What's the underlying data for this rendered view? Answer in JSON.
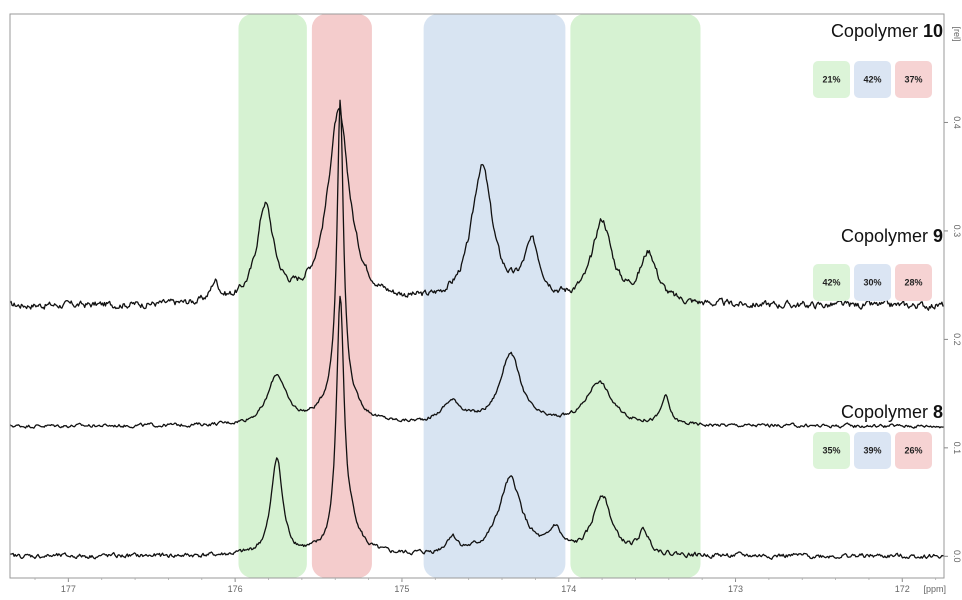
{
  "chart_data": {
    "type": "line",
    "title": "",
    "xlabel": "",
    "ylabel": "",
    "x_unit_label": "[ppm]",
    "y_unit_label": "[rel]",
    "xlim": [
      177.35,
      171.75
    ],
    "x_reversed": true,
    "x_ticks": [
      "177",
      "176",
      "175",
      "174",
      "173",
      "172"
    ],
    "y_ticks": [
      "0.0",
      "0.1",
      "0.2",
      "0.3",
      "0.4"
    ],
    "ylim": [
      -0.02,
      0.5
    ],
    "colors": {
      "line": "#111111",
      "green_band": "#d6f2d2",
      "red_band": "#f4cccc",
      "blue_band": "#d8e4f2",
      "green_badge": "#dcf4d8",
      "blue_badge": "#dbe5f3",
      "red_badge": "#f6d3d3"
    },
    "regions": [
      {
        "color": "green",
        "from": 175.98,
        "to": 175.57
      },
      {
        "color": "red",
        "from": 175.54,
        "to": 175.18
      },
      {
        "color": "blue",
        "from": 174.87,
        "to": 174.02
      },
      {
        "color": "green",
        "from": 173.99,
        "to": 173.21
      }
    ],
    "series": [
      {
        "label_text": "Copolymer",
        "label_number": "10",
        "baseline": 0.231,
        "percentages": [
          "21%",
          "42%",
          "37%"
        ],
        "peaks": [
          [
            176.12,
            0.018,
            0.06
          ],
          [
            175.82,
            0.089,
            0.12
          ],
          [
            175.38,
            0.175,
            0.16
          ],
          [
            174.52,
            0.125,
            0.15
          ],
          [
            174.22,
            0.05,
            0.12
          ],
          [
            173.8,
            0.075,
            0.14
          ],
          [
            173.52,
            0.045,
            0.12
          ]
        ],
        "noise": 0.006
      },
      {
        "label_text": "Copolymer",
        "label_number": "9",
        "baseline": 0.12,
        "percentages": [
          "42%",
          "30%",
          "28%"
        ],
        "peaks": [
          [
            175.75,
            0.045,
            0.13
          ],
          [
            175.37,
            0.27,
            0.045
          ],
          [
            175.37,
            0.03,
            0.2
          ],
          [
            174.35,
            0.065,
            0.15
          ],
          [
            174.7,
            0.02,
            0.15
          ],
          [
            173.82,
            0.04,
            0.18
          ],
          [
            173.42,
            0.025,
            0.06
          ]
        ],
        "noise": 0.003
      },
      {
        "label_text": "Copolymer",
        "label_number": "8",
        "baseline": 0.0,
        "percentages": [
          "35%",
          "39%",
          "26%"
        ],
        "peaks": [
          [
            175.75,
            0.09,
            0.08
          ],
          [
            175.37,
            0.23,
            0.055
          ],
          [
            175.3,
            0.02,
            0.12
          ],
          [
            174.35,
            0.07,
            0.17
          ],
          [
            174.7,
            0.015,
            0.08
          ],
          [
            173.8,
            0.055,
            0.13
          ],
          [
            173.55,
            0.02,
            0.08
          ],
          [
            174.08,
            0.02,
            0.08
          ]
        ],
        "noise": 0.004
      }
    ]
  }
}
